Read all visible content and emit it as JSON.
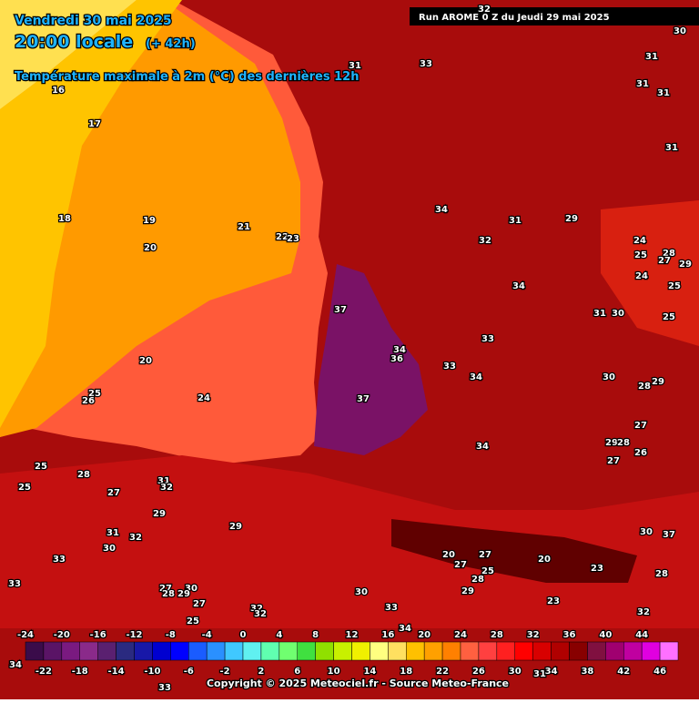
{
  "header": {
    "date": "Vendredi 30 mai 2025",
    "time": "20:00 locale",
    "lead": "(+ 42h)",
    "title": "Température maximale à 2m (°C) des dernières 12h",
    "run": "Run AROME 0 Z du Jeudi 29 mai 2025"
  },
  "map_labels": [
    30,
    32,
    31,
    33,
    31,
    31,
    31,
    31,
    34,
    31,
    29,
    32,
    24,
    25,
    28,
    27,
    29,
    24,
    25,
    34,
    31,
    30,
    25,
    33,
    37,
    34,
    36,
    33,
    34,
    30,
    29,
    28,
    37,
    27,
    29,
    28,
    26,
    27,
    34,
    16,
    17,
    18,
    19,
    20,
    21,
    22,
    23,
    20,
    25,
    26,
    24,
    25,
    28,
    25,
    31,
    32,
    27,
    29,
    29,
    31,
    32,
    30,
    33,
    33,
    27,
    30,
    28,
    29,
    27,
    25,
    32,
    32,
    30,
    33,
    20,
    27,
    27,
    28,
    29,
    25,
    20,
    23,
    23,
    30,
    37,
    32,
    28,
    34,
    34,
    33,
    31
  ],
  "legend": {
    "ticks": [
      -24,
      -22,
      -20,
      -18,
      -16,
      -14,
      -12,
      -10,
      -8,
      -6,
      -4,
      -2,
      0,
      2,
      4,
      6,
      8,
      10,
      12,
      14,
      16,
      18,
      20,
      22,
      24,
      26,
      28,
      30,
      32,
      34,
      36,
      38,
      40,
      42,
      44,
      46
    ],
    "colors": [
      "#3a0c4a",
      "#5a1466",
      "#7a1a80",
      "#8a2a8a",
      "#5a2070",
      "#2a2a80",
      "#1818a8",
      "#0000d0",
      "#0000ff",
      "#1a5cff",
      "#2a90ff",
      "#40c8ff",
      "#60f0f0",
      "#60ffb0",
      "#70ff70",
      "#40e040",
      "#90e000",
      "#c8f000",
      "#f0f000",
      "#ffff80",
      "#ffe060",
      "#ffc000",
      "#ffa000",
      "#ff8000",
      "#ff6040",
      "#ff4040",
      "#ff2020",
      "#ff0000",
      "#d80000",
      "#b00000",
      "#880000",
      "#801040",
      "#a00070",
      "#c000a0",
      "#e000e0",
      "#ff70ff"
    ]
  },
  "footer": {
    "copyright": "Copyright © 2025 Meteociel.fr - Source Meteo-France"
  }
}
